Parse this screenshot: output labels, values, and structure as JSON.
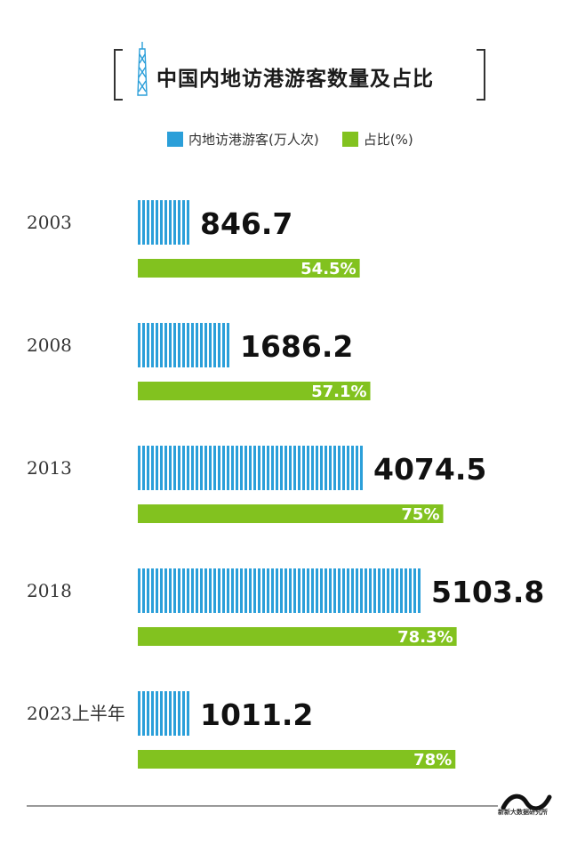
{
  "title": "中国内地访港游客数量及占比",
  "legend": {
    "visitors": "内地访港游客(万人次)",
    "share": "占比(%)"
  },
  "colors": {
    "visitors": "#2b9fd9",
    "share": "#82c21f"
  },
  "chart_data": {
    "type": "bar",
    "categories": [
      "2003",
      "2008",
      "2013",
      "2018",
      "2023上半年"
    ],
    "series": [
      {
        "name": "内地访港游客(万人次)",
        "values": [
          846.7,
          1686.2,
          4074.5,
          5103.8,
          1011.2
        ],
        "labels": [
          "846.7",
          "1686.2",
          "4074.5",
          "5103.8",
          "1011.2"
        ]
      },
      {
        "name": "占比(%)",
        "values": [
          54.5,
          57.1,
          75,
          78.3,
          78
        ],
        "labels": [
          "54.5%",
          "57.1%",
          "75%",
          "78.3%",
          "78%"
        ]
      }
    ]
  },
  "footer": {
    "logo_text": "新新大数据研究所"
  }
}
